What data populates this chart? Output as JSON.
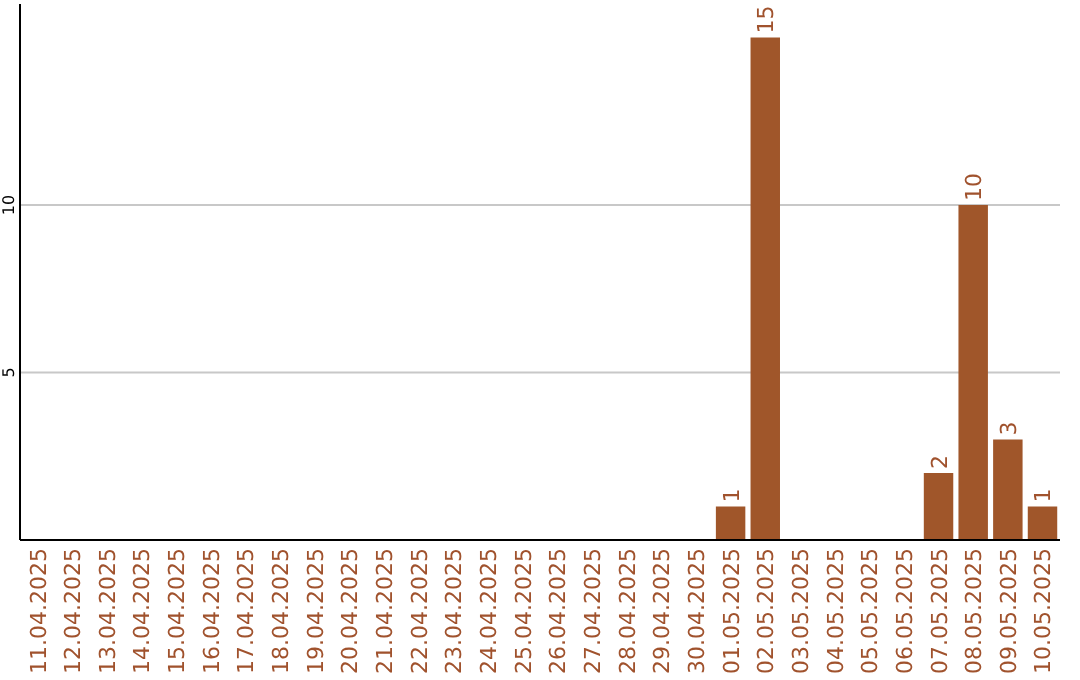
{
  "chart_data": {
    "type": "bar",
    "categories": [
      "11.04.2025",
      "12.04.2025",
      "13.04.2025",
      "14.04.2025",
      "15.04.2025",
      "16.04.2025",
      "17.04.2025",
      "18.04.2025",
      "19.04.2025",
      "20.04.2025",
      "21.04.2025",
      "22.04.2025",
      "23.04.2025",
      "24.04.2025",
      "25.04.2025",
      "26.04.2025",
      "27.04.2025",
      "28.04.2025",
      "29.04.2025",
      "30.04.2025",
      "01.05.2025",
      "02.05.2025",
      "03.05.2025",
      "04.05.2025",
      "05.05.2025",
      "06.05.2025",
      "07.05.2025",
      "08.05.2025",
      "09.05.2025",
      "10.05.2025"
    ],
    "values": [
      0,
      0,
      0,
      0,
      0,
      0,
      0,
      0,
      0,
      0,
      0,
      0,
      0,
      0,
      0,
      0,
      0,
      0,
      0,
      0,
      1,
      15,
      0,
      0,
      0,
      0,
      2,
      10,
      3,
      1
    ],
    "value_labels": [
      null,
      null,
      null,
      null,
      null,
      null,
      null,
      null,
      null,
      null,
      null,
      null,
      null,
      null,
      null,
      null,
      null,
      null,
      null,
      null,
      "1",
      "15",
      null,
      null,
      null,
      null,
      "2",
      "10",
      "3",
      "1"
    ],
    "color": "#a0562a",
    "ylim": [
      0,
      16
    ],
    "yticks": [
      5,
      10
    ],
    "grid": "y"
  }
}
